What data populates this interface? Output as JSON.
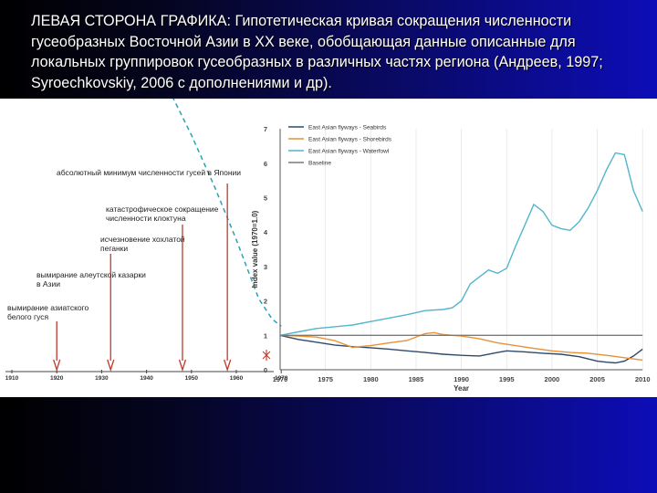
{
  "header": {
    "text": "ЛЕВАЯ СТОРОНА ГРАФИКА: Гипотетическая кривая сокращения численности гусеобразных Восточной Азии в XX веке, обобщающая данные описанные для локальных группировок гусеобразных в различных частях региона (Андреев, 1997; Syroechkovskiy, 2006 с дополнениями и др)."
  },
  "annotations": {
    "min_japan": "абсолютный минимум численности гусей в Японии",
    "klokhtun_1": "катастрофическое сокращение",
    "klokhtun_2": "численности клоктуна",
    "pegankha_1": "исчезновение хохлатой",
    "pegankha_2": "пеганки",
    "aleut_1": "вымирание алеутской казарки",
    "aleut_2": "в Азии",
    "white_1": "вымирание азиатского",
    "white_2": "белого гуся"
  },
  "colors": {
    "seabirds": "#2e4a6b",
    "shorebirds": "#e8913a",
    "waterfowl": "#52b6cc",
    "baseline": "#7a7a7a",
    "hypothetical": "#2aa0b8",
    "arrows": "#c0392b"
  },
  "chart_data": [
    {
      "type": "line",
      "x_ticks": [
        "1910",
        "1920",
        "1930",
        "1940",
        "1950",
        "1960",
        "1970"
      ],
      "series": [
        {
          "x": [
            1912,
            1920,
            1930,
            1940,
            1945,
            1950,
            1955,
            1960,
            1965,
            1968,
            1970
          ],
          "values": [
            8.0,
            7.8,
            7.4,
            6.8,
            6.2,
            5.2,
            4.1,
            2.9,
            1.6,
            1.15,
            1.0
          ]
        }
      ],
      "event_years": [
        1920,
        1932,
        1948,
        1958
      ]
    },
    {
      "type": "line",
      "xlabel": "Year",
      "ylabel": "Index value (1970=1.0)",
      "x_ticks": [
        1970,
        1975,
        1980,
        1985,
        1990,
        1995,
        2000,
        2005,
        2010
      ],
      "y_ticks": [
        0,
        1,
        2,
        3,
        4,
        5,
        6,
        7
      ],
      "xlim": [
        1970,
        2010
      ],
      "ylim": [
        0,
        7
      ],
      "legend_position": "top-left",
      "series": [
        {
          "name": "East Asian flyways - Seabirds",
          "x": [
            1970,
            1972,
            1974,
            1976,
            1978,
            1980,
            1982,
            1984,
            1986,
            1988,
            1990,
            1992,
            1994,
            1995,
            1997,
            1999,
            2001,
            2003,
            2005,
            2006,
            2007,
            2008,
            2009,
            2010
          ],
          "values": [
            1.0,
            0.88,
            0.8,
            0.72,
            0.67,
            0.64,
            0.6,
            0.55,
            0.5,
            0.45,
            0.42,
            0.4,
            0.5,
            0.55,
            0.52,
            0.48,
            0.45,
            0.38,
            0.25,
            0.22,
            0.2,
            0.25,
            0.4,
            0.6
          ]
        },
        {
          "name": "East Asian flyways - Shorebirds",
          "x": [
            1970,
            1972,
            1974,
            1976,
            1978,
            1980,
            1982,
            1984,
            1986,
            1987,
            1988,
            1990,
            1992,
            1994,
            1996,
            1998,
            2000,
            2002,
            2004,
            2006,
            2008,
            2010
          ],
          "values": [
            1.0,
            0.98,
            0.95,
            0.85,
            0.65,
            0.7,
            0.78,
            0.85,
            1.05,
            1.08,
            1.02,
            0.98,
            0.9,
            0.78,
            0.7,
            0.62,
            0.55,
            0.5,
            0.48,
            0.42,
            0.35,
            0.28
          ]
        },
        {
          "name": "East Asian flyways - Waterfowl",
          "x": [
            1970,
            1972,
            1974,
            1976,
            1978,
            1980,
            1982,
            1984,
            1986,
            1988,
            1989,
            1990,
            1991,
            1992,
            1993,
            1994,
            1995,
            1996,
            1997,
            1998,
            1999,
            2000,
            2001,
            2002,
            2003,
            2004,
            2005,
            2006,
            2007,
            2008,
            2009,
            2010
          ],
          "values": [
            1.0,
            1.1,
            1.2,
            1.25,
            1.3,
            1.4,
            1.5,
            1.6,
            1.72,
            1.75,
            1.8,
            2.0,
            2.5,
            2.7,
            2.9,
            2.8,
            2.95,
            3.6,
            4.2,
            4.8,
            4.6,
            4.2,
            4.1,
            4.05,
            4.3,
            4.7,
            5.2,
            5.8,
            6.3,
            6.25,
            5.2,
            4.6
          ]
        },
        {
          "name": "Baseline",
          "x": [
            1970,
            2010
          ],
          "values": [
            1.0,
            1.0
          ]
        }
      ]
    }
  ]
}
